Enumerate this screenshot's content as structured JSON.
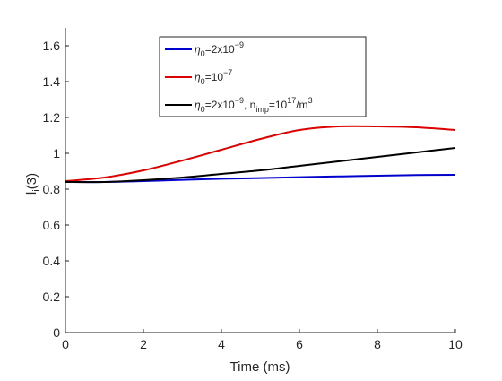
{
  "chart_data": {
    "type": "line",
    "xlabel": "Time (ms)",
    "ylabel": "l_i(3)",
    "xlim": [
      0,
      10
    ],
    "ylim": [
      0,
      1.7
    ],
    "xticks": [
      0,
      2,
      4,
      6,
      8,
      10
    ],
    "yticks": [
      0,
      0.2,
      0.4,
      0.6,
      0.8,
      1,
      1.2,
      1.4,
      1.6
    ],
    "xtick_labels": [
      "0",
      "2",
      "4",
      "6",
      "8",
      "10"
    ],
    "ytick_labels": [
      "0",
      "0.2",
      "0.4",
      "0.6",
      "0.8",
      "1",
      "1.2",
      "1.4",
      "1.6"
    ],
    "grid": false,
    "legend_position": "top-center",
    "series": [
      {
        "name": "η0=2x10^-9",
        "color": "#0000cc",
        "x": [
          0,
          1,
          2,
          3,
          4,
          5,
          6,
          7,
          8,
          9,
          10
        ],
        "values": [
          0.84,
          0.84,
          0.845,
          0.852,
          0.858,
          0.862,
          0.867,
          0.871,
          0.875,
          0.879,
          0.88
        ]
      },
      {
        "name": "η0=10^-7",
        "color": "#dd0000",
        "x": [
          0,
          1,
          2,
          3,
          4,
          5,
          6,
          7,
          8,
          9,
          10
        ],
        "values": [
          0.845,
          0.865,
          0.905,
          0.96,
          1.02,
          1.08,
          1.13,
          1.15,
          1.15,
          1.145,
          1.13
        ]
      },
      {
        "name": "η0=2x10^-9, nimp=10^17/m^3",
        "color": "#000000",
        "x": [
          0,
          1,
          2,
          3,
          4,
          5,
          6,
          7,
          8,
          9,
          10
        ],
        "values": [
          0.84,
          0.84,
          0.85,
          0.865,
          0.885,
          0.905,
          0.93,
          0.955,
          0.98,
          1.005,
          1.03
        ]
      }
    ]
  }
}
